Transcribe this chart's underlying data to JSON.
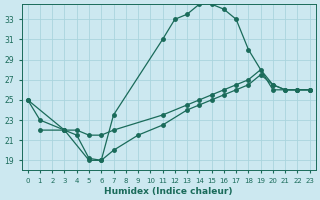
{
  "xlabel": "Humidex (Indice chaleur)",
  "bg_color": "#cce8f0",
  "grid_color": "#aad4dd",
  "line_color": "#1a6b5a",
  "xlim": [
    -0.5,
    23.5
  ],
  "ylim": [
    18.0,
    34.5
  ],
  "xticks": [
    0,
    1,
    2,
    3,
    4,
    5,
    6,
    7,
    8,
    9,
    10,
    11,
    12,
    13,
    14,
    15,
    16,
    17,
    18,
    19,
    20,
    21,
    22,
    23
  ],
  "yticks": [
    19,
    21,
    23,
    25,
    27,
    29,
    31,
    33
  ],
  "line1_x": [
    0,
    1,
    3,
    5,
    6,
    7,
    11,
    12,
    13,
    14,
    15,
    16,
    17,
    18,
    20,
    22,
    23
  ],
  "line1_y": [
    25,
    23,
    22,
    19.0,
    19.0,
    23.5,
    31.0,
    33.0,
    33.5,
    34.5,
    34.5,
    34.0,
    33.0,
    30.0,
    26.0,
    26.0,
    26.0
  ],
  "line2_x": [
    0,
    3,
    4,
    5,
    6,
    7,
    11,
    13,
    14,
    15,
    16,
    17,
    18,
    19,
    20,
    21,
    22,
    23
  ],
  "line2_y": [
    25,
    22,
    22,
    21.5,
    21.5,
    22.0,
    23.5,
    24.5,
    25.0,
    25.5,
    26.0,
    26.5,
    27.0,
    28.0,
    26.5,
    26.0,
    26.0,
    26.0
  ],
  "line3_x": [
    1,
    3,
    4,
    5,
    6,
    7,
    9,
    11,
    13,
    14,
    15,
    16,
    17,
    18,
    19,
    20,
    21,
    22,
    23
  ],
  "line3_y": [
    22,
    22,
    21.5,
    19.2,
    19.0,
    20.0,
    21.5,
    22.5,
    24.0,
    24.5,
    25.0,
    25.5,
    26.0,
    26.5,
    27.5,
    26.5,
    26.0,
    26.0,
    26.0
  ]
}
